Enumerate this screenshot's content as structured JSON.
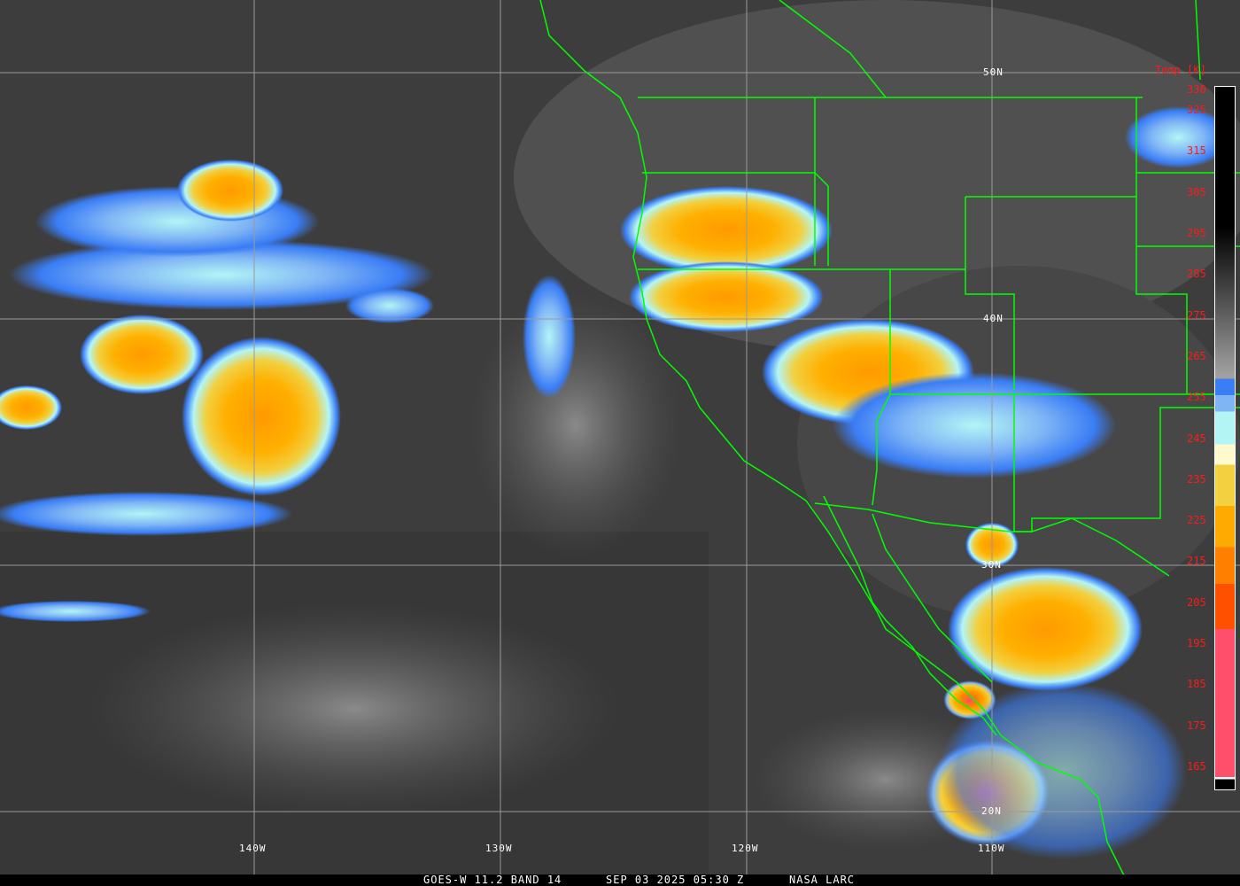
{
  "caption": {
    "satellite": "GOES-W 11.2 BAND 14",
    "datetime": "SEP 03 2025 05:30 Z",
    "credit": "NASA LARC"
  },
  "colorbar": {
    "title": "Temp [K]",
    "ticks": [
      "330",
      "325",
      "315",
      "305",
      "295",
      "285",
      "275",
      "265",
      "255",
      "245",
      "235",
      "225",
      "215",
      "205",
      "195",
      "185",
      "175",
      "165"
    ],
    "colors": {
      "warm_top": "#000000",
      "mid_gray": "#a0a0a0",
      "blue": "#3a7df5",
      "light_blue": "#7fb5f5",
      "cyan": "#b3f5f5",
      "pale_yellow": "#fffacd",
      "yellow": "#f2d040",
      "orange": "#ffaa00",
      "dark_orange": "#ff7f00",
      "red_orange": "#ff5000",
      "pink": "#ff4f6a"
    }
  },
  "grid": {
    "latitudes": [
      "50N",
      "40N",
      "30N",
      "20N"
    ],
    "longitudes": [
      "140W",
      "130W",
      "120W",
      "110W"
    ]
  },
  "colors": {
    "borders": "#00ff00",
    "grid": "#9a9a9a",
    "label": "#ffffff"
  }
}
